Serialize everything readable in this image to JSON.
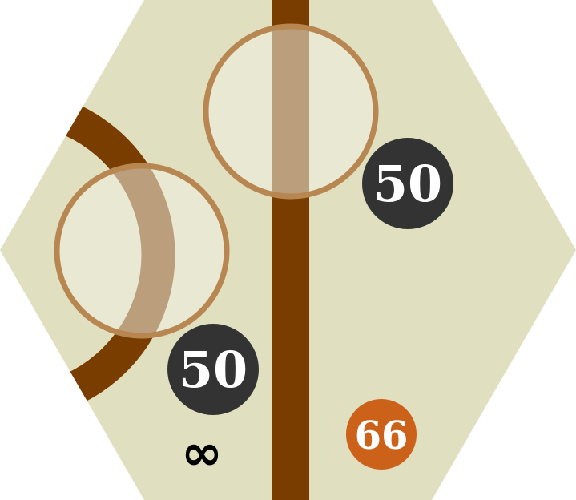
{
  "tile": {
    "colors": {
      "background": "#e0dfc0",
      "track": "#7a3d00",
      "city_fill": "#f0eee0",
      "city_ring": "#b88650",
      "token": "#333333",
      "token_text": "#ffffff",
      "hex_label_fill": "#cc6119",
      "hex_label_text": "#ffffff",
      "symbol": "#000000"
    },
    "cities": [
      {
        "name": "left",
        "revenue": "50"
      },
      {
        "name": "top",
        "revenue": "50"
      }
    ],
    "tracks": [
      {
        "name": "straight",
        "shape": "vertical straight"
      },
      {
        "name": "curve",
        "shape": "left arc"
      }
    ],
    "hex_label": "66",
    "symbol": "∞"
  }
}
